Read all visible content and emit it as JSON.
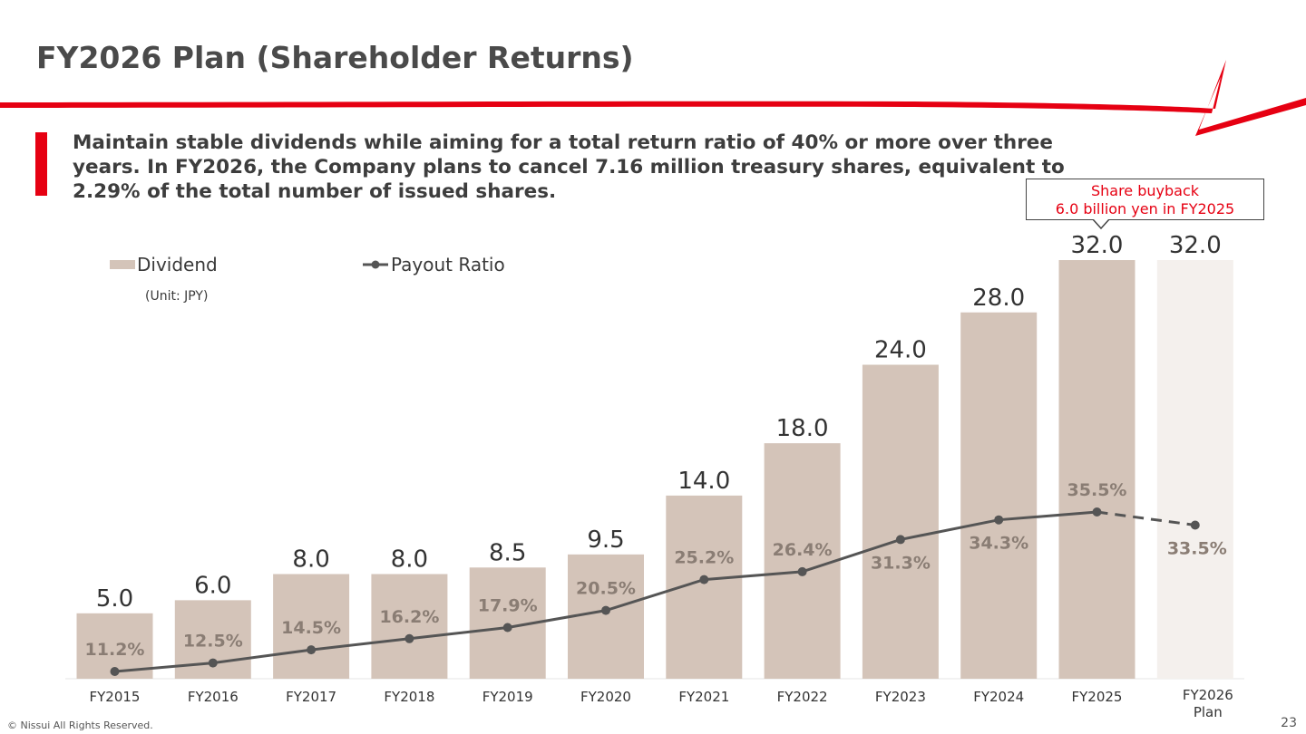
{
  "page": {
    "title": "FY2026 Plan (Shareholder Returns)",
    "lead": "Maintain stable dividends while aiming for a total return ratio of 40% or more over three years. In FY2026, the Company plans to cancel 7.16 million treasury shares, equivalent to 2.29% of the total number of issued shares.",
    "callout_line1": "Share buyback",
    "callout_line2": "6.0 billion yen in FY2025",
    "footer": "© Nissui All Rights Reserved.",
    "page_number": "23",
    "unit_note": "(Unit: JPY)",
    "brand_color": "#e60012"
  },
  "chart_data": {
    "type": "bar",
    "categories": [
      "FY2015",
      "FY2016",
      "FY2017",
      "FY2018",
      "FY2019",
      "FY2020",
      "FY2021",
      "FY2022",
      "FY2023",
      "FY2024",
      "FY2025",
      "FY2026 Plan"
    ],
    "series": [
      {
        "name": "Dividend",
        "type": "bar",
        "values": [
          5.0,
          6.0,
          8.0,
          8.0,
          8.5,
          9.5,
          14.0,
          18.0,
          24.0,
          28.0,
          32.0,
          32.0
        ],
        "labels": [
          "5.0",
          "6.0",
          "8.0",
          "8.0",
          "8.5",
          "9.5",
          "14.0",
          "18.0",
          "24.0",
          "28.0",
          "32.0",
          "32.0"
        ],
        "color": "#d4c4b9",
        "plan_color": "#f4f0ed"
      },
      {
        "name": "Payout Ratio",
        "type": "line",
        "values": [
          11.2,
          12.5,
          14.5,
          16.2,
          17.9,
          20.5,
          25.2,
          26.4,
          31.3,
          34.3,
          35.5,
          33.5
        ],
        "labels": [
          "11.2%",
          "12.5%",
          "14.5%",
          "16.2%",
          "17.9%",
          "20.5%",
          "25.2%",
          "26.4%",
          "31.3%",
          "34.3%",
          "35.5%",
          "33.5%"
        ],
        "color": "#555555",
        "projected_from_index": 10
      }
    ],
    "ylim_bar": [
      0,
      32
    ],
    "ylim_line": [
      10,
      36
    ],
    "legend_position": "top-left",
    "grid": false
  }
}
